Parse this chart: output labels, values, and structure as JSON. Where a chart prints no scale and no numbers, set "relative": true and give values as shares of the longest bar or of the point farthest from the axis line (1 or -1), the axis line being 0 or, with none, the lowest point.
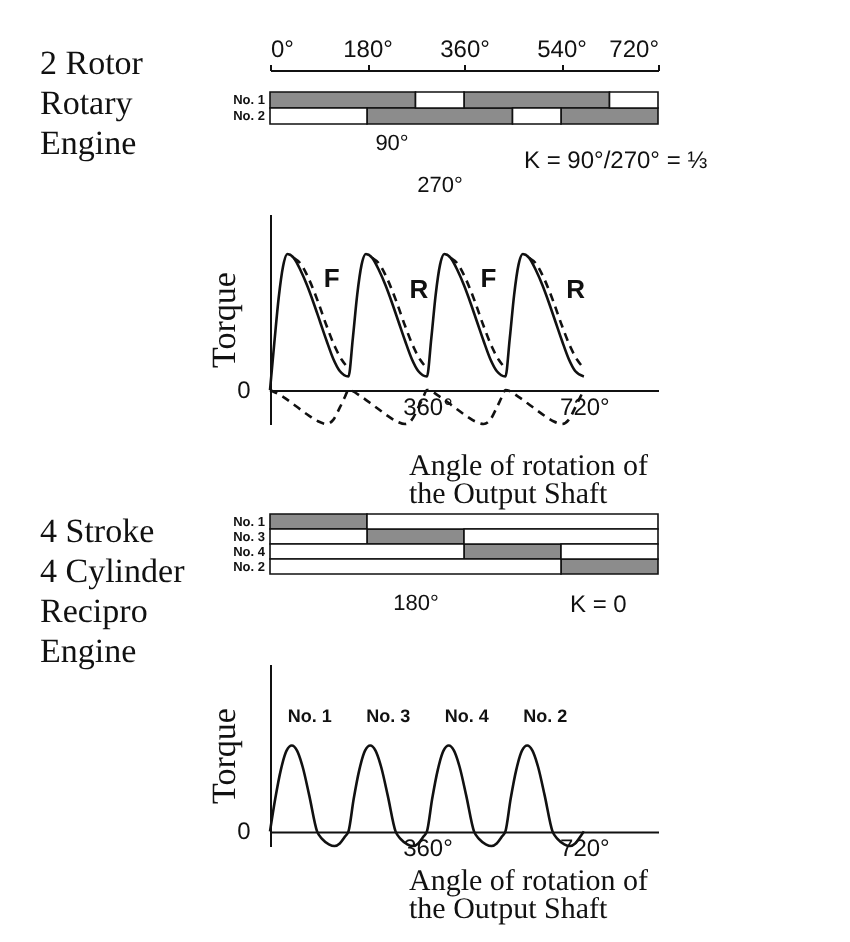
{
  "chart_data": [
    {
      "type": "bar",
      "orientation": "horizontal",
      "title": "2 Rotor Rotary Engine",
      "categories": [
        "No. 1",
        "No. 2"
      ],
      "series": [
        {
          "color": "#8c8c8c",
          "base": [
            0,
            180
          ],
          "values": [
            270,
            270
          ]
        },
        {
          "color": "#8c8c8c",
          "base": [
            360,
            540
          ],
          "values": [
            270,
            180
          ]
        },
        {
          "color": "#ffffff",
          "base": [
            270,
            0
          ],
          "values": [
            90,
            180
          ]
        },
        {
          "color": "#ffffff",
          "base": [
            630,
            450
          ],
          "values": [
            90,
            90
          ]
        }
      ],
      "xlim": [
        0,
        720
      ],
      "xticks": [
        {
          "value": 0,
          "label": "0°"
        },
        {
          "value": 180,
          "label": "180°"
        },
        {
          "value": 360,
          "label": "360°"
        },
        {
          "value": 540,
          "label": "540°"
        },
        {
          "value": 720,
          "label": "720°"
        }
      ],
      "annotations": [
        "90°",
        "270°",
        "K = 90°/270° = ⅓"
      ]
    },
    {
      "type": "line",
      "relative": true,
      "ylabel": "Torque",
      "xlabel": "Angle of rotation of the Output Shaft",
      "xlim": [
        0,
        890
      ],
      "xticks": [
        {
          "value": 360,
          "label": "360°"
        },
        {
          "value": 720,
          "label": "720°"
        }
      ],
      "series": [
        {
          "color": "#111111",
          "line_style": "solid",
          "x": [
            0,
            10,
            20,
            30,
            40,
            55,
            70,
            85,
            100,
            115,
            130,
            145,
            160,
            180,
            190,
            200,
            210,
            220,
            235,
            250,
            265,
            280,
            295,
            310,
            325,
            340,
            360,
            370,
            380,
            390,
            400,
            415,
            430,
            445,
            460,
            475,
            490,
            505,
            520,
            540,
            550,
            560,
            570,
            580,
            595,
            610,
            625,
            640,
            655,
            670,
            685,
            700,
            720
          ],
          "values": [
            0,
            0.35,
            0.68,
            0.91,
            1,
            0.97,
            0.88,
            0.77,
            0.64,
            0.5,
            0.36,
            0.23,
            0.14,
            0.1,
            0.38,
            0.7,
            0.92,
            1,
            0.97,
            0.88,
            0.77,
            0.64,
            0.5,
            0.36,
            0.23,
            0.14,
            0.1,
            0.38,
            0.7,
            0.92,
            1,
            0.97,
            0.88,
            0.77,
            0.64,
            0.5,
            0.36,
            0.23,
            0.14,
            0.1,
            0.38,
            0.7,
            0.92,
            1,
            0.97,
            0.88,
            0.77,
            0.64,
            0.5,
            0.36,
            0.23,
            0.14,
            0.1
          ]
        },
        {
          "color": "#111111",
          "line_style": "dashed",
          "x": [
            55,
            70,
            90,
            110,
            130,
            150,
            165,
            180,
            190,
            235,
            250,
            270,
            290,
            310,
            330,
            345,
            360,
            370,
            415,
            430,
            450,
            470,
            490,
            510,
            525,
            540,
            550,
            595,
            610,
            630,
            650,
            670,
            690,
            705,
            720
          ],
          "values": [
            0.97,
            0.93,
            0.81,
            0.65,
            0.47,
            0.31,
            0.22,
            0.16,
            null,
            0.97,
            0.93,
            0.81,
            0.65,
            0.47,
            0.31,
            0.22,
            0.16,
            null,
            0.97,
            0.93,
            0.81,
            0.65,
            0.47,
            0.31,
            0.22,
            0.16,
            null,
            0.97,
            0.93,
            0.81,
            0.65,
            0.47,
            0.31,
            0.22,
            0.16
          ]
        },
        {
          "color": "#111111",
          "line_style": "dashed",
          "x": [
            0,
            30,
            60,
            90,
            110,
            130,
            145,
            160,
            172,
            180,
            210,
            240,
            270,
            290,
            310,
            325,
            340,
            352,
            360,
            390,
            420,
            450,
            470,
            490,
            505,
            520,
            532,
            540,
            570,
            600,
            630,
            650,
            670,
            685,
            700,
            712,
            720
          ],
          "values": [
            0,
            -0.05,
            -0.12,
            -0.19,
            -0.23,
            -0.25,
            -0.22,
            -0.13,
            -0.05,
            0,
            -0.05,
            -0.12,
            -0.19,
            -0.23,
            -0.25,
            -0.22,
            -0.13,
            -0.05,
            0,
            -0.05,
            -0.12,
            -0.19,
            -0.23,
            -0.25,
            -0.22,
            -0.13,
            -0.05,
            0,
            -0.05,
            -0.12,
            -0.19,
            -0.23,
            -0.25,
            -0.22,
            -0.13,
            -0.05,
            0
          ]
        }
      ],
      "annotations": [
        {
          "text": "0",
          "x": 0,
          "y": 0
        },
        {
          "text": "F",
          "x": 100,
          "y": 0.64
        },
        {
          "text": "R",
          "x": 300,
          "y": 0.56
        },
        {
          "text": "F",
          "x": 460,
          "y": 0.64
        },
        {
          "text": "R",
          "x": 660,
          "y": 0.56
        }
      ]
    },
    {
      "type": "bar",
      "orientation": "horizontal",
      "title": "4 Stroke 4 Cylinder Recipro Engine",
      "categories": [
        "No. 1",
        "No. 3",
        "No. 4",
        "No. 2"
      ],
      "series": [
        {
          "color": "#8c8c8c",
          "base": [
            0,
            180,
            360,
            540
          ],
          "values": [
            180,
            180,
            180,
            180
          ]
        },
        {
          "color": "#ffffff",
          "base": [
            180,
            0,
            0,
            0
          ],
          "values": [
            540,
            180,
            360,
            540
          ]
        },
        {
          "color": "#ffffff",
          "base": [
            null,
            360,
            540,
            null
          ],
          "values": [
            null,
            360,
            180,
            null
          ]
        }
      ],
      "xlim": [
        0,
        720
      ],
      "tick_labels": "y",
      "annotations": [
        "180°",
        "K = 0"
      ]
    },
    {
      "type": "line",
      "relative": true,
      "ylabel": "Torque",
      "xlabel": "Angle of rotation of the Output Shaft",
      "xlim": [
        0,
        890
      ],
      "xticks": [
        {
          "value": 360,
          "label": "360°"
        },
        {
          "value": 720,
          "label": "720°"
        }
      ],
      "series": [
        {
          "color": "#111111",
          "line_style": "solid",
          "x": [
            0,
            12,
            25,
            38,
            50,
            62,
            75,
            90,
            108,
            120,
            135,
            148,
            160,
            172,
            180,
            192,
            205,
            218,
            230,
            242,
            255,
            270,
            288,
            300,
            315,
            328,
            340,
            352,
            360,
            372,
            385,
            398,
            410,
            422,
            435,
            450,
            468,
            480,
            495,
            508,
            520,
            532,
            540,
            552,
            565,
            578,
            590,
            602,
            615,
            630,
            648,
            660,
            675,
            688,
            700,
            712,
            720
          ],
          "values": [
            0,
            0.38,
            0.72,
            0.94,
            1,
            0.94,
            0.75,
            0.42,
            0,
            -0.09,
            -0.15,
            -0.17,
            -0.14,
            -0.06,
            0,
            0.38,
            0.72,
            0.94,
            1,
            0.94,
            0.75,
            0.42,
            0,
            -0.09,
            -0.15,
            -0.17,
            -0.14,
            -0.06,
            0,
            0.38,
            0.72,
            0.94,
            1,
            0.94,
            0.75,
            0.42,
            0,
            -0.09,
            -0.15,
            -0.17,
            -0.14,
            -0.06,
            0,
            0.38,
            0.72,
            0.94,
            1,
            0.94,
            0.75,
            0.42,
            0,
            -0.09,
            -0.15,
            -0.17,
            -0.14,
            -0.06,
            0
          ]
        }
      ],
      "annotations": [
        {
          "text": "0",
          "x": 0,
          "y": 0
        },
        {
          "text": "No. 1",
          "x": 50,
          "y": 1
        },
        {
          "text": "No. 3",
          "x": 230,
          "y": 1
        },
        {
          "text": "No. 4",
          "x": 410,
          "y": 1
        },
        {
          "text": "No. 2",
          "x": 590,
          "y": 1
        }
      ]
    }
  ]
}
